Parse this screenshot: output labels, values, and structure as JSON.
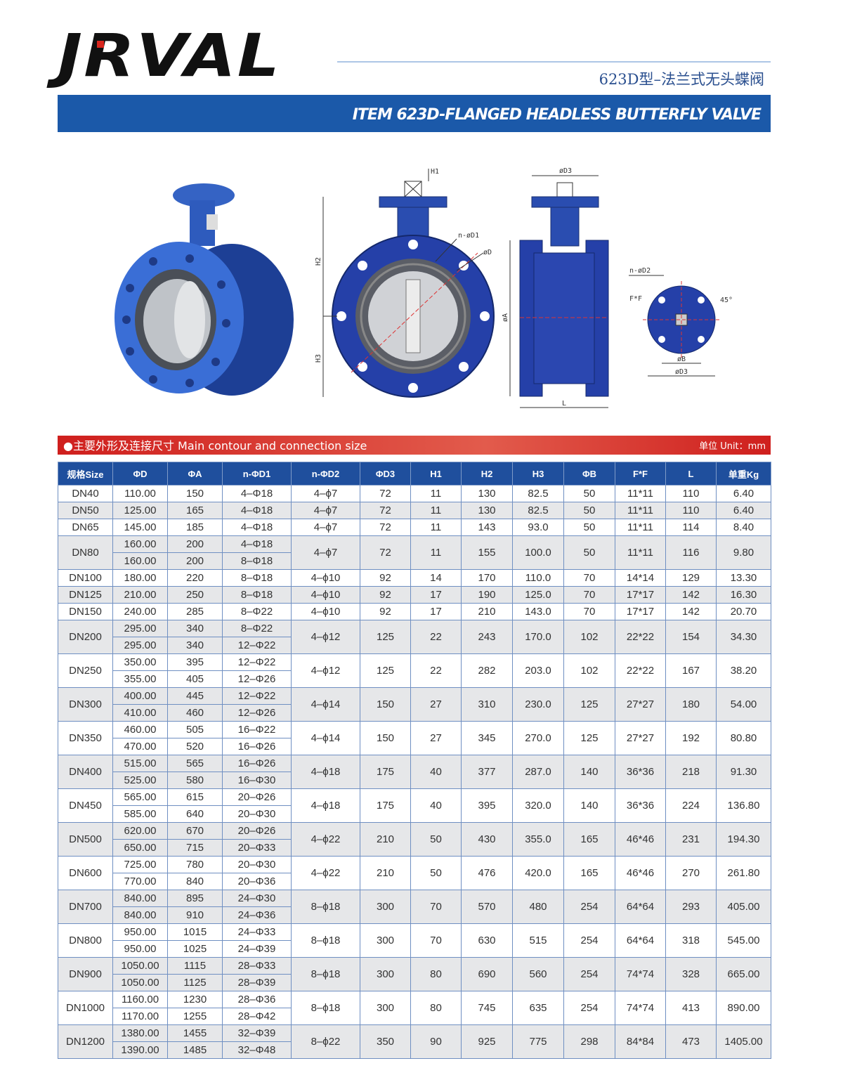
{
  "logo": "JRVAL",
  "title_cn": "623D型–法兰式无头蝶阀",
  "banner": "ITEM 623D-FLANGED HEADLESS BUTTERFLY VALVE",
  "drawing": {
    "h1": "H1",
    "n_d1": "n-øD1",
    "d": "øD",
    "h2": "H2",
    "h3": "H3",
    "d3_side": "øD3",
    "a": "øA",
    "l": "L",
    "n_d2": "n-øD2",
    "ff": "F*F",
    "angle": "45°",
    "b": "øB",
    "d3_top": "øD3"
  },
  "section": {
    "title": "●主要外形及连接尺寸 Main contour and connection size",
    "unit": "单位 Unit：mm"
  },
  "table": {
    "headers": [
      "规格Size",
      "ΦD",
      "ΦA",
      "n-ΦD1",
      "n-ΦD2",
      "ΦD3",
      "H1",
      "H2",
      "H3",
      "ΦB",
      "F*F",
      "L",
      "单重Kg"
    ],
    "rows": [
      {
        "size": "DN40",
        "d": [
          "110.00"
        ],
        "a": [
          "150"
        ],
        "d1": [
          "4–Φ18"
        ],
        "d2": "4–ϕ7",
        "d3": "72",
        "h1": "11",
        "h2": "130",
        "h3": "82.5",
        "b": "50",
        "ff": "11*11",
        "l": "110",
        "kg": "6.40"
      },
      {
        "size": "DN50",
        "d": [
          "125.00"
        ],
        "a": [
          "165"
        ],
        "d1": [
          "4–Φ18"
        ],
        "d2": "4–ϕ7",
        "d3": "72",
        "h1": "11",
        "h2": "130",
        "h3": "82.5",
        "b": "50",
        "ff": "11*11",
        "l": "110",
        "kg": "6.40"
      },
      {
        "size": "DN65",
        "d": [
          "145.00"
        ],
        "a": [
          "185"
        ],
        "d1": [
          "4–Φ18"
        ],
        "d2": "4–ϕ7",
        "d3": "72",
        "h1": "11",
        "h2": "143",
        "h3": "93.0",
        "b": "50",
        "ff": "11*11",
        "l": "114",
        "kg": "8.40"
      },
      {
        "size": "DN80",
        "d": [
          "160.00",
          "160.00"
        ],
        "a": [
          "200",
          "200"
        ],
        "d1": [
          "4–Φ18",
          "8–Φ18"
        ],
        "d2": "4–ϕ7",
        "d3": "72",
        "h1": "11",
        "h2": "155",
        "h3": "100.0",
        "b": "50",
        "ff": "11*11",
        "l": "116",
        "kg": "9.80"
      },
      {
        "size": "DN100",
        "d": [
          "180.00"
        ],
        "a": [
          "220"
        ],
        "d1": [
          "8–Φ18"
        ],
        "d2": "4–ϕ10",
        "d3": "92",
        "h1": "14",
        "h2": "170",
        "h3": "110.0",
        "b": "70",
        "ff": "14*14",
        "l": "129",
        "kg": "13.30"
      },
      {
        "size": "DN125",
        "d": [
          "210.00"
        ],
        "a": [
          "250"
        ],
        "d1": [
          "8–Φ18"
        ],
        "d2": "4–ϕ10",
        "d3": "92",
        "h1": "17",
        "h2": "190",
        "h3": "125.0",
        "b": "70",
        "ff": "17*17",
        "l": "142",
        "kg": "16.30"
      },
      {
        "size": "DN150",
        "d": [
          "240.00"
        ],
        "a": [
          "285"
        ],
        "d1": [
          "8–Φ22"
        ],
        "d2": "4–ϕ10",
        "d3": "92",
        "h1": "17",
        "h2": "210",
        "h3": "143.0",
        "b": "70",
        "ff": "17*17",
        "l": "142",
        "kg": "20.70"
      },
      {
        "size": "DN200",
        "d": [
          "295.00",
          "295.00"
        ],
        "a": [
          "340",
          "340"
        ],
        "d1": [
          "8–Φ22",
          "12–Φ22"
        ],
        "d2": "4–ϕ12",
        "d3": "125",
        "h1": "22",
        "h2": "243",
        "h3": "170.0",
        "b": "102",
        "ff": "22*22",
        "l": "154",
        "kg": "34.30"
      },
      {
        "size": "DN250",
        "d": [
          "350.00",
          "355.00"
        ],
        "a": [
          "395",
          "405"
        ],
        "d1": [
          "12–Φ22",
          "12–Φ26"
        ],
        "d2": "4–ϕ12",
        "d3": "125",
        "h1": "22",
        "h2": "282",
        "h3": "203.0",
        "b": "102",
        "ff": "22*22",
        "l": "167",
        "kg": "38.20"
      },
      {
        "size": "DN300",
        "d": [
          "400.00",
          "410.00"
        ],
        "a": [
          "445",
          "460"
        ],
        "d1": [
          "12–Φ22",
          "12–Φ26"
        ],
        "d2": "4–ϕ14",
        "d3": "150",
        "h1": "27",
        "h2": "310",
        "h3": "230.0",
        "b": "125",
        "ff": "27*27",
        "l": "180",
        "kg": "54.00"
      },
      {
        "size": "DN350",
        "d": [
          "460.00",
          "470.00"
        ],
        "a": [
          "505",
          "520"
        ],
        "d1": [
          "16–Φ22",
          "16–Φ26"
        ],
        "d2": "4–ϕ14",
        "d3": "150",
        "h1": "27",
        "h2": "345",
        "h3": "270.0",
        "b": "125",
        "ff": "27*27",
        "l": "192",
        "kg": "80.80"
      },
      {
        "size": "DN400",
        "d": [
          "515.00",
          "525.00"
        ],
        "a": [
          "565",
          "580"
        ],
        "d1": [
          "16–Φ26",
          "16–Φ30"
        ],
        "d2": "4–ϕ18",
        "d3": "175",
        "h1": "40",
        "h2": "377",
        "h3": "287.0",
        "b": "140",
        "ff": "36*36",
        "l": "218",
        "kg": "91.30"
      },
      {
        "size": "DN450",
        "d": [
          "565.00",
          "585.00"
        ],
        "a": [
          "615",
          "640"
        ],
        "d1": [
          "20–Φ26",
          "20–Φ30"
        ],
        "d2": "4–ϕ18",
        "d3": "175",
        "h1": "40",
        "h2": "395",
        "h3": "320.0",
        "b": "140",
        "ff": "36*36",
        "l": "224",
        "kg": "136.80"
      },
      {
        "size": "DN500",
        "d": [
          "620.00",
          "650.00"
        ],
        "a": [
          "670",
          "715"
        ],
        "d1": [
          "20–Φ26",
          "20–Φ33"
        ],
        "d2": "4–ϕ22",
        "d3": "210",
        "h1": "50",
        "h2": "430",
        "h3": "355.0",
        "b": "165",
        "ff": "46*46",
        "l": "231",
        "kg": "194.30"
      },
      {
        "size": "DN600",
        "d": [
          "725.00",
          "770.00"
        ],
        "a": [
          "780",
          "840"
        ],
        "d1": [
          "20–Φ30",
          "20–Φ36"
        ],
        "d2": "4–ϕ22",
        "d3": "210",
        "h1": "50",
        "h2": "476",
        "h3": "420.0",
        "b": "165",
        "ff": "46*46",
        "l": "270",
        "kg": "261.80"
      },
      {
        "size": "DN700",
        "d": [
          "840.00",
          "840.00"
        ],
        "a": [
          "895",
          "910"
        ],
        "d1": [
          "24–Φ30",
          "24–Φ36"
        ],
        "d2": "8–ϕ18",
        "d3": "300",
        "h1": "70",
        "h2": "570",
        "h3": "480",
        "b": "254",
        "ff": "64*64",
        "l": "293",
        "kg": "405.00"
      },
      {
        "size": "DN800",
        "d": [
          "950.00",
          "950.00"
        ],
        "a": [
          "1015",
          "1025"
        ],
        "d1": [
          "24–Φ33",
          "24–Φ39"
        ],
        "d2": "8–ϕ18",
        "d3": "300",
        "h1": "70",
        "h2": "630",
        "h3": "515",
        "b": "254",
        "ff": "64*64",
        "l": "318",
        "kg": "545.00"
      },
      {
        "size": "DN900",
        "d": [
          "1050.00",
          "1050.00"
        ],
        "a": [
          "1115",
          "1125"
        ],
        "d1": [
          "28–Φ33",
          "28–Φ39"
        ],
        "d2": "8–ϕ18",
        "d3": "300",
        "h1": "80",
        "h2": "690",
        "h3": "560",
        "b": "254",
        "ff": "74*74",
        "l": "328",
        "kg": "665.00"
      },
      {
        "size": "DN1000",
        "d": [
          "1160.00",
          "1170.00"
        ],
        "a": [
          "1230",
          "1255"
        ],
        "d1": [
          "28–Φ36",
          "28–Φ42"
        ],
        "d2": "8–ϕ18",
        "d3": "300",
        "h1": "80",
        "h2": "745",
        "h3": "635",
        "b": "254",
        "ff": "74*74",
        "l": "413",
        "kg": "890.00"
      },
      {
        "size": "DN1200",
        "d": [
          "1380.00",
          "1390.00"
        ],
        "a": [
          "1455",
          "1485"
        ],
        "d1": [
          "32–Φ39",
          "32–Φ48"
        ],
        "d2": "8–ϕ22",
        "d3": "350",
        "h1": "90",
        "h2": "925",
        "h3": "775",
        "b": "298",
        "ff": "84*84",
        "l": "473",
        "kg": "1405.00"
      }
    ]
  }
}
